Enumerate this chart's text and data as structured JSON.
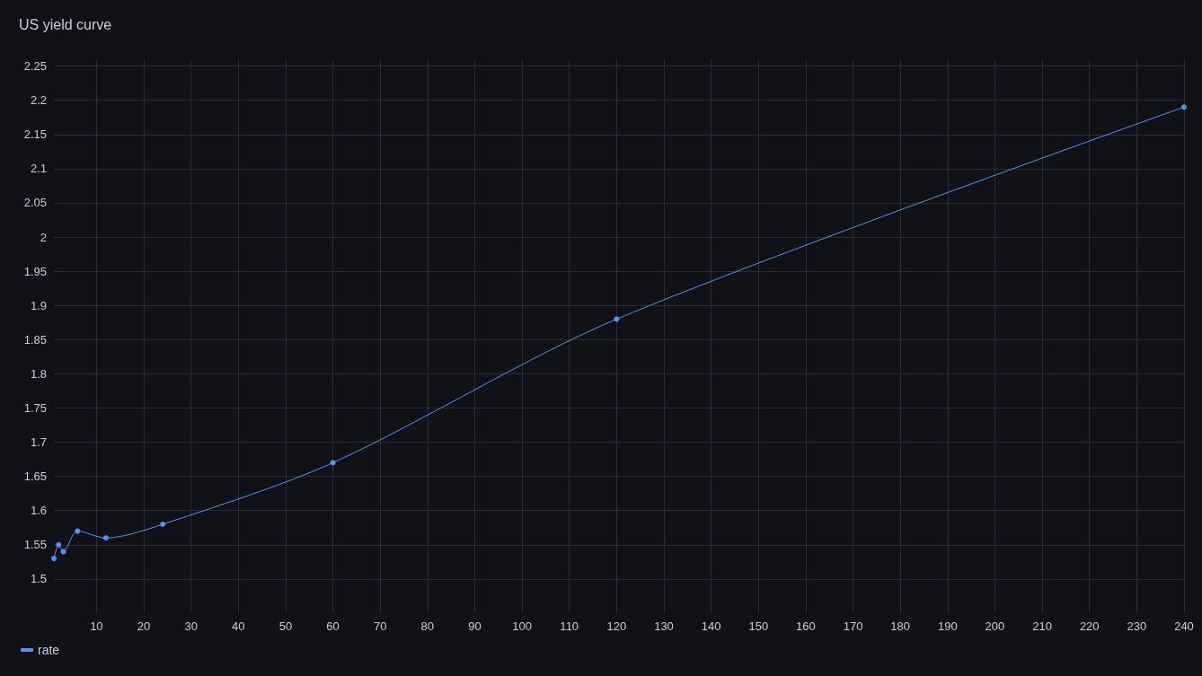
{
  "chart_data": {
    "type": "line",
    "title": "US yield curve",
    "x": [
      1,
      2,
      3,
      6,
      12,
      24,
      60,
      120,
      240
    ],
    "series": [
      {
        "name": "rate",
        "color": "#5794f2",
        "values": [
          1.53,
          1.55,
          1.54,
          1.57,
          1.56,
          1.58,
          1.67,
          1.88,
          2.19
        ]
      }
    ],
    "xlim": [
      1,
      240
    ],
    "xticks": [
      10,
      20,
      30,
      40,
      50,
      60,
      70,
      80,
      90,
      100,
      110,
      120,
      130,
      140,
      150,
      160,
      170,
      180,
      190,
      200,
      210,
      220,
      230,
      240
    ],
    "ylim": [
      1.45,
      2.26
    ],
    "yticks": [
      1.5,
      1.55,
      1.6,
      1.65,
      1.7,
      1.75,
      1.8,
      1.85,
      1.9,
      1.95,
      2,
      2.05,
      2.1,
      2.15,
      2.2,
      2.25
    ],
    "grid": true,
    "legend": "bottom left",
    "marker": "circle",
    "line_style": "solid"
  }
}
